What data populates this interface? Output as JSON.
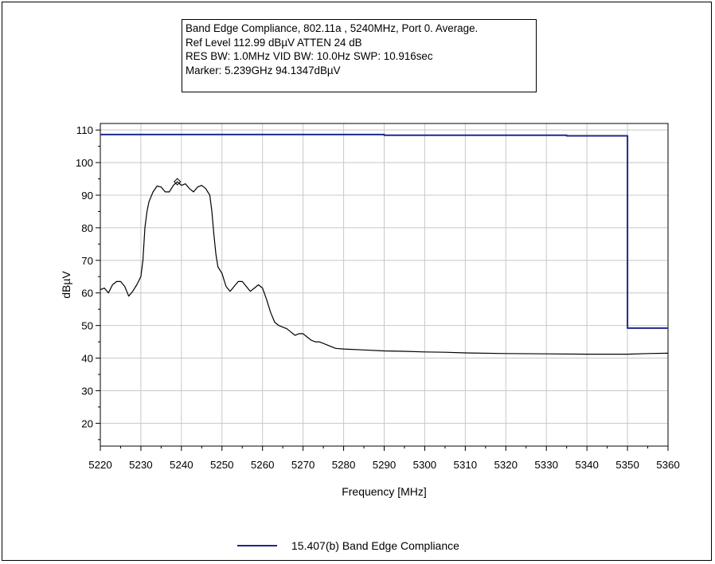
{
  "info": {
    "line1": "Band Edge Compliance, 802.11a , 5240MHz, Port 0. Average.",
    "line2": "Ref Level 112.99 dBµV    ATTEN 24 dB",
    "line3": "RES BW: 1.0MHz  VID BW: 10.0Hz  SWP: 10.916sec",
    "line4": "Marker: 5.239GHz  94.1347dBµV"
  },
  "legend": {
    "label": "15.407(b) Band Edge Compliance",
    "color": "#1c2a8c"
  },
  "chart_data": {
    "type": "line",
    "xlabel": "Frequency [MHz]",
    "ylabel": "dBµV",
    "xlim": [
      5220,
      5360
    ],
    "ylim": [
      13,
      112
    ],
    "x_ticks": [
      5220,
      5230,
      5240,
      5250,
      5260,
      5270,
      5280,
      5290,
      5300,
      5310,
      5320,
      5330,
      5340,
      5350,
      5360
    ],
    "y_ticks": [
      20,
      30,
      40,
      50,
      60,
      70,
      80,
      90,
      100,
      110
    ],
    "grid": true,
    "legend_position": "bottom",
    "series": [
      {
        "name": "15.407(b) Band Edge Compliance",
        "color": "#1c2a8c",
        "points": [
          [
            5220,
            108.6
          ],
          [
            5290,
            108.6
          ],
          [
            5290,
            108.4
          ],
          [
            5335,
            108.4
          ],
          [
            5335,
            108.2
          ],
          [
            5350,
            108.2
          ],
          [
            5350,
            49.2
          ],
          [
            5360,
            49.2
          ]
        ]
      },
      {
        "color": "#000000",
        "points": [
          [
            5220,
            61.0
          ],
          [
            5221,
            61.5
          ],
          [
            5222,
            60.0
          ],
          [
            5223,
            62.5
          ],
          [
            5224,
            63.5
          ],
          [
            5225,
            63.5
          ],
          [
            5226,
            62.0
          ],
          [
            5227,
            59.0
          ],
          [
            5228,
            60.5
          ],
          [
            5229,
            62.5
          ],
          [
            5230,
            65.0
          ],
          [
            5230.5,
            70.0
          ],
          [
            5231,
            80.0
          ],
          [
            5231.5,
            85.0
          ],
          [
            5232,
            88.0
          ],
          [
            5233,
            91.0
          ],
          [
            5234,
            92.8
          ],
          [
            5235,
            92.5
          ],
          [
            5236,
            91.0
          ],
          [
            5237,
            91.0
          ],
          [
            5238,
            93.0
          ],
          [
            5239,
            94.1
          ],
          [
            5240,
            93.0
          ],
          [
            5241,
            93.5
          ],
          [
            5242,
            92.0
          ],
          [
            5243,
            91.0
          ],
          [
            5244,
            92.5
          ],
          [
            5245,
            93.0
          ],
          [
            5246,
            92.0
          ],
          [
            5247,
            90.0
          ],
          [
            5247.5,
            85.0
          ],
          [
            5248,
            78.0
          ],
          [
            5248.5,
            72.0
          ],
          [
            5249,
            68.0
          ],
          [
            5250,
            66.0
          ],
          [
            5251,
            62.0
          ],
          [
            5252,
            60.5
          ],
          [
            5253,
            62.0
          ],
          [
            5254,
            63.5
          ],
          [
            5255,
            63.5
          ],
          [
            5256,
            62.0
          ],
          [
            5257,
            60.5
          ],
          [
            5258,
            61.5
          ],
          [
            5259,
            62.5
          ],
          [
            5260,
            61.5
          ],
          [
            5261,
            58.0
          ],
          [
            5262,
            54.0
          ],
          [
            5263,
            51.0
          ],
          [
            5264,
            50.0
          ],
          [
            5265,
            49.5
          ],
          [
            5266,
            49.0
          ],
          [
            5267,
            48.0
          ],
          [
            5268,
            47.0
          ],
          [
            5269,
            47.5
          ],
          [
            5270,
            47.5
          ],
          [
            5271,
            46.5
          ],
          [
            5272,
            45.5
          ],
          [
            5273,
            45.0
          ],
          [
            5274,
            45.0
          ],
          [
            5275,
            44.5
          ],
          [
            5276,
            44.0
          ],
          [
            5277,
            43.5
          ],
          [
            5278,
            43.0
          ],
          [
            5280,
            42.8
          ],
          [
            5285,
            42.5
          ],
          [
            5290,
            42.2
          ],
          [
            5295,
            42.1
          ],
          [
            5300,
            41.9
          ],
          [
            5305,
            41.8
          ],
          [
            5310,
            41.6
          ],
          [
            5320,
            41.4
          ],
          [
            5330,
            41.3
          ],
          [
            5340,
            41.2
          ],
          [
            5350,
            41.2
          ],
          [
            5355,
            41.4
          ],
          [
            5360,
            41.5
          ]
        ]
      }
    ],
    "marker": {
      "x": 5239,
      "y": 94.1347
    }
  }
}
